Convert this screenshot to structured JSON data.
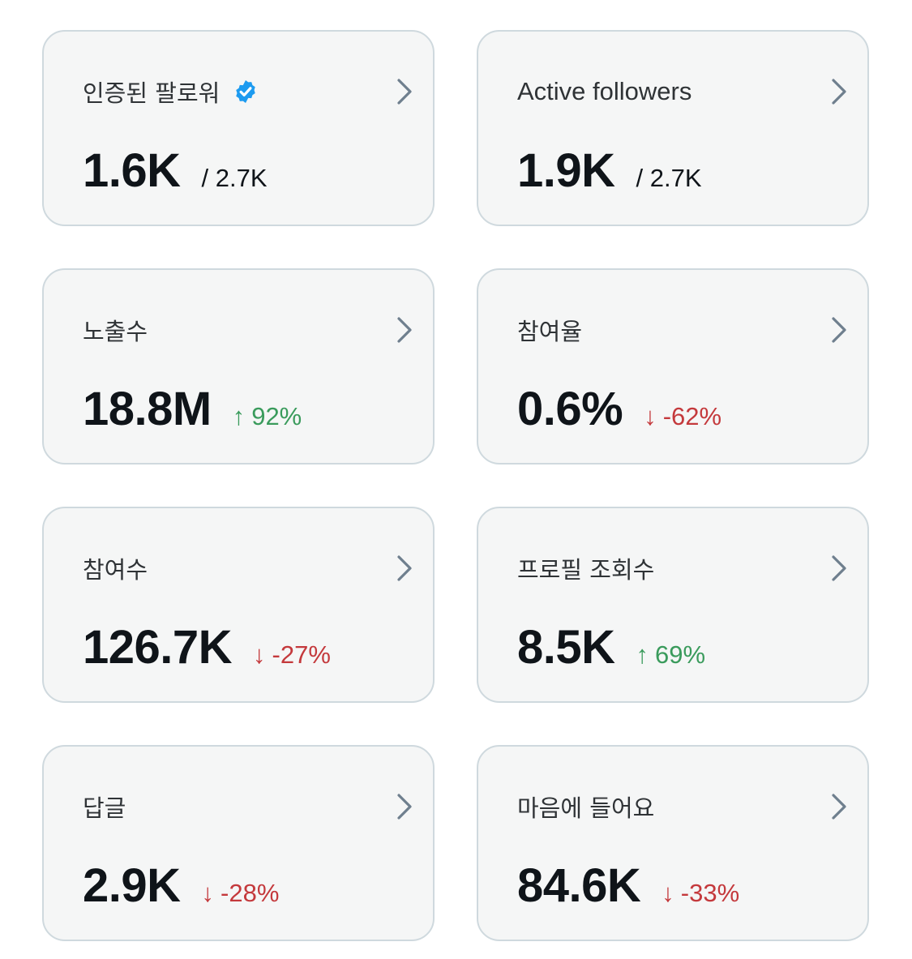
{
  "colors": {
    "card_bg": "#f5f6f6",
    "card_border": "#cfd9de",
    "up": "#3a9b5c",
    "down": "#c4393c",
    "verified": "#1d9bf0"
  },
  "cards": [
    {
      "title": "인증된 팔로워",
      "icon": "verified-badge-icon",
      "value": "1.6K",
      "sub": "/ 2.7K"
    },
    {
      "title": "Active followers",
      "value": "1.9K",
      "sub": "/ 2.7K"
    },
    {
      "title": "노출수",
      "value": "18.8M",
      "change": {
        "direction": "up",
        "arrow": "↑",
        "text": "92%"
      }
    },
    {
      "title": "참여율",
      "value": "0.6%",
      "change": {
        "direction": "down",
        "arrow": "↓",
        "text": "-62%"
      }
    },
    {
      "title": "참여수",
      "value": "126.7K",
      "change": {
        "direction": "down",
        "arrow": "↓",
        "text": "-27%"
      }
    },
    {
      "title": "프로필 조회수",
      "value": "8.5K",
      "change": {
        "direction": "up",
        "arrow": "↑",
        "text": "69%"
      }
    },
    {
      "title": "답글",
      "value": "2.9K",
      "change": {
        "direction": "down",
        "arrow": "↓",
        "text": "-28%"
      }
    },
    {
      "title": "마음에 들어요",
      "value": "84.6K",
      "change": {
        "direction": "down",
        "arrow": "↓",
        "text": "-33%"
      }
    }
  ]
}
